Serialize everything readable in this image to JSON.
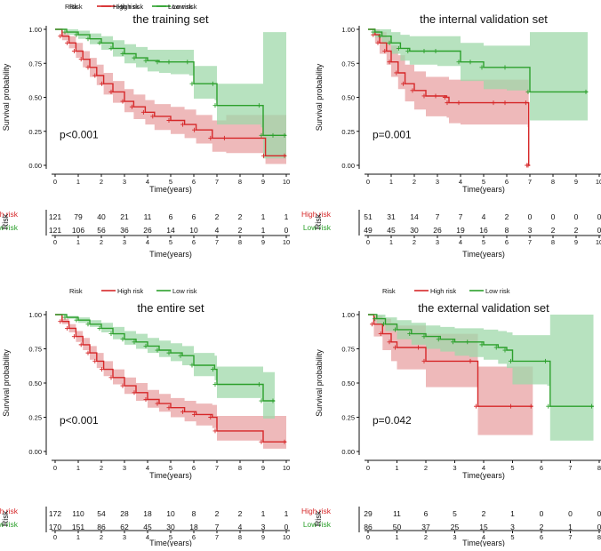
{
  "colors": {
    "high": "#d62728",
    "low": "#2ca02c",
    "high_fill": "#e8a2a3",
    "low_fill": "#9fd8aa",
    "axis": "#111111"
  },
  "legend": {
    "title": "Risk",
    "high": "High risk",
    "low": "Low risk"
  },
  "chart_data": [
    {
      "type": "line",
      "title": "the training set",
      "xlabel": "Time(years)",
      "ylabel": "Survival probability",
      "xlim": [
        0,
        10
      ],
      "ylim": [
        0,
        1
      ],
      "xticks": [
        "0",
        "1",
        "2",
        "3",
        "4",
        "5",
        "6",
        "7",
        "8",
        "9",
        "10"
      ],
      "yticks": [
        "0.00",
        "0.25",
        "0.50",
        "0.75",
        "1.00"
      ],
      "pvalue": "p<0.001",
      "series": [
        {
          "name": "High risk",
          "x": [
            0,
            0.3,
            0.6,
            0.9,
            1.2,
            1.5,
            1.8,
            2.1,
            2.5,
            3.0,
            3.4,
            3.9,
            4.3,
            5.0,
            5.6,
            6.1,
            6.8,
            7.4,
            9.1,
            10.0
          ],
          "y": [
            1.0,
            0.95,
            0.9,
            0.84,
            0.78,
            0.72,
            0.66,
            0.6,
            0.54,
            0.47,
            0.43,
            0.39,
            0.36,
            0.33,
            0.3,
            0.26,
            0.2,
            0.2,
            0.07,
            0.07
          ],
          "lo": [
            1.0,
            0.92,
            0.86,
            0.79,
            0.72,
            0.65,
            0.59,
            0.52,
            0.46,
            0.39,
            0.34,
            0.3,
            0.26,
            0.23,
            0.2,
            0.16,
            0.1,
            0.09,
            0.01,
            0.01
          ],
          "hi": [
            1.0,
            0.98,
            0.95,
            0.9,
            0.84,
            0.79,
            0.74,
            0.68,
            0.62,
            0.56,
            0.52,
            0.48,
            0.45,
            0.43,
            0.41,
            0.37,
            0.33,
            0.37,
            0.37,
            0.37
          ]
        },
        {
          "name": "Low risk",
          "x": [
            0,
            0.5,
            1.0,
            1.5,
            2.0,
            2.5,
            3.0,
            3.5,
            4.0,
            4.5,
            5.0,
            5.8,
            6.0,
            6.9,
            7.0,
            8.9,
            9.0,
            9.5,
            10.0
          ],
          "y": [
            1.0,
            0.98,
            0.96,
            0.93,
            0.9,
            0.86,
            0.82,
            0.79,
            0.77,
            0.76,
            0.76,
            0.76,
            0.6,
            0.6,
            0.44,
            0.44,
            0.22,
            0.22,
            0.22
          ],
          "lo": [
            1.0,
            0.96,
            0.93,
            0.89,
            0.85,
            0.8,
            0.75,
            0.72,
            0.69,
            0.68,
            0.67,
            0.66,
            0.49,
            0.48,
            0.3,
            0.28,
            0.05,
            0.05,
            0.05
          ],
          "hi": [
            1.0,
            1.0,
            0.99,
            0.97,
            0.95,
            0.92,
            0.89,
            0.87,
            0.85,
            0.85,
            0.85,
            0.85,
            0.73,
            0.73,
            0.6,
            0.6,
            0.98,
            0.98,
            0.98
          ]
        }
      ],
      "risk_table": {
        "high_label": "High risk",
        "low_label": "Low risk",
        "side_label": "Risk",
        "high": [
          "121",
          "79",
          "40",
          "21",
          "11",
          "6",
          "6",
          "2",
          "2",
          "1",
          "1"
        ],
        "low": [
          "121",
          "106",
          "56",
          "36",
          "26",
          "14",
          "10",
          "4",
          "2",
          "1",
          "0"
        ],
        "xticks": [
          "0",
          "1",
          "2",
          "3",
          "4",
          "5",
          "6",
          "7",
          "8",
          "9",
          "10"
        ],
        "xlabel": "Time(years)"
      }
    },
    {
      "type": "line",
      "title": "the internal validation set",
      "xlabel": "Time(years)",
      "ylabel": "Survival probability",
      "xlim": [
        0,
        10
      ],
      "ylim": [
        0,
        1
      ],
      "xticks": [
        "0",
        "1",
        "2",
        "3",
        "4",
        "5",
        "6",
        "7",
        "8",
        "9",
        "10"
      ],
      "yticks": [
        "0.00",
        "0.25",
        "0.50",
        "0.75",
        "1.00"
      ],
      "pvalue": "p=0.001",
      "series": [
        {
          "name": "High risk",
          "x": [
            0,
            0.3,
            0.5,
            0.8,
            1.0,
            1.3,
            1.6,
            2.0,
            2.5,
            3.0,
            3.4,
            3.5,
            4.0,
            5.5,
            6.0,
            6.9,
            6.95,
            7.0
          ],
          "y": [
            1.0,
            0.96,
            0.9,
            0.84,
            0.76,
            0.68,
            0.6,
            0.55,
            0.51,
            0.51,
            0.5,
            0.46,
            0.46,
            0.46,
            0.46,
            0.46,
            0.0,
            0.0
          ],
          "lo": [
            1.0,
            0.9,
            0.82,
            0.74,
            0.65,
            0.56,
            0.47,
            0.41,
            0.36,
            0.36,
            0.35,
            0.31,
            0.3,
            0.3,
            0.3,
            0.28,
            0.0,
            0.0
          ],
          "hi": [
            1.0,
            1.0,
            0.98,
            0.94,
            0.88,
            0.81,
            0.74,
            0.69,
            0.65,
            0.65,
            0.65,
            0.63,
            0.63,
            0.63,
            0.63,
            0.63,
            0.0,
            0.0
          ]
        },
        {
          "name": "Low risk",
          "x": [
            0,
            0.3,
            0.6,
            1.0,
            1.4,
            1.8,
            2.5,
            3.0,
            4.0,
            4.5,
            5.0,
            6.0,
            7.0,
            9.5
          ],
          "y": [
            1.0,
            0.98,
            0.95,
            0.9,
            0.86,
            0.84,
            0.84,
            0.84,
            0.76,
            0.76,
            0.72,
            0.72,
            0.54,
            0.54
          ],
          "lo": [
            1.0,
            0.94,
            0.89,
            0.82,
            0.77,
            0.74,
            0.74,
            0.73,
            0.62,
            0.62,
            0.56,
            0.55,
            0.33,
            0.33
          ],
          "hi": [
            1.0,
            1.0,
            1.0,
            0.98,
            0.96,
            0.95,
            0.95,
            0.95,
            0.9,
            0.9,
            0.88,
            0.88,
            0.98,
            0.98
          ]
        }
      ],
      "risk_table": {
        "high_label": "High risk",
        "low_label": "Low risk",
        "side_label": "Risk",
        "high": [
          "51",
          "31",
          "14",
          "7",
          "7",
          "4",
          "2",
          "0",
          "0",
          "0",
          "0"
        ],
        "low": [
          "49",
          "45",
          "30",
          "26",
          "19",
          "16",
          "8",
          "3",
          "2",
          "2",
          "0"
        ],
        "xticks": [
          "0",
          "1",
          "2",
          "3",
          "4",
          "5",
          "6",
          "7",
          "8",
          "9",
          "10"
        ],
        "xlabel": "Time(years)"
      }
    },
    {
      "type": "line",
      "title": "the entire set",
      "xlabel": "Time(years)",
      "ylabel": "Survival probability",
      "xlim": [
        0,
        10
      ],
      "ylim": [
        0,
        1
      ],
      "xticks": [
        "0",
        "1",
        "2",
        "3",
        "4",
        "5",
        "6",
        "7",
        "8",
        "9",
        "10"
      ],
      "yticks": [
        "0.00",
        "0.25",
        "0.50",
        "0.75",
        "1.00"
      ],
      "pvalue": "p<0.001",
      "series": [
        {
          "name": "High risk",
          "x": [
            0,
            0.3,
            0.6,
            0.9,
            1.2,
            1.5,
            1.8,
            2.1,
            2.5,
            3.0,
            3.5,
            4.0,
            4.5,
            5.0,
            5.6,
            6.1,
            6.8,
            7.0,
            9.0,
            10.0
          ],
          "y": [
            1.0,
            0.95,
            0.9,
            0.84,
            0.78,
            0.72,
            0.66,
            0.6,
            0.54,
            0.48,
            0.43,
            0.38,
            0.35,
            0.32,
            0.29,
            0.27,
            0.25,
            0.15,
            0.07,
            0.07
          ],
          "lo": [
            1.0,
            0.93,
            0.87,
            0.8,
            0.74,
            0.67,
            0.61,
            0.55,
            0.49,
            0.42,
            0.37,
            0.32,
            0.29,
            0.25,
            0.22,
            0.19,
            0.17,
            0.08,
            0.02,
            0.02
          ],
          "hi": [
            1.0,
            0.97,
            0.93,
            0.88,
            0.83,
            0.77,
            0.72,
            0.66,
            0.6,
            0.54,
            0.5,
            0.45,
            0.42,
            0.39,
            0.37,
            0.35,
            0.34,
            0.26,
            0.26,
            0.26
          ]
        },
        {
          "name": "Low risk",
          "x": [
            0,
            0.5,
            1.0,
            1.5,
            2.0,
            2.5,
            3.0,
            3.5,
            4.0,
            4.5,
            5.0,
            5.5,
            6.0,
            6.9,
            7.0,
            8.9,
            9.0,
            9.5
          ],
          "y": [
            1.0,
            0.98,
            0.96,
            0.93,
            0.9,
            0.86,
            0.82,
            0.8,
            0.77,
            0.74,
            0.72,
            0.7,
            0.63,
            0.6,
            0.49,
            0.49,
            0.37,
            0.37
          ],
          "lo": [
            1.0,
            0.97,
            0.94,
            0.91,
            0.87,
            0.82,
            0.78,
            0.75,
            0.72,
            0.69,
            0.66,
            0.63,
            0.55,
            0.52,
            0.39,
            0.38,
            0.24,
            0.24
          ],
          "hi": [
            1.0,
            0.99,
            0.98,
            0.96,
            0.94,
            0.91,
            0.88,
            0.86,
            0.83,
            0.81,
            0.79,
            0.77,
            0.72,
            0.7,
            0.62,
            0.62,
            0.58,
            0.58
          ]
        }
      ],
      "risk_table": {
        "high_label": "High risk",
        "low_label": "Low risk",
        "side_label": "Risk",
        "high": [
          "172",
          "110",
          "54",
          "28",
          "18",
          "10",
          "8",
          "2",
          "2",
          "1",
          "1"
        ],
        "low": [
          "170",
          "151",
          "86",
          "62",
          "45",
          "30",
          "18",
          "7",
          "4",
          "3",
          "0"
        ],
        "xticks": [
          "0",
          "1",
          "2",
          "3",
          "4",
          "5",
          "6",
          "7",
          "8",
          "9",
          "10"
        ],
        "xlabel": "Time(years)"
      }
    },
    {
      "type": "line",
      "title": "the external validation set",
      "xlabel": "Time(years)",
      "ylabel": "Survival probability",
      "xlim": [
        0,
        8
      ],
      "ylim": [
        0,
        1
      ],
      "xticks": [
        "0",
        "1",
        "2",
        "3",
        "4",
        "5",
        "6",
        "7",
        "8"
      ],
      "yticks": [
        "0.00",
        "0.25",
        "0.50",
        "0.75",
        "1.00"
      ],
      "pvalue": "p=0.042",
      "series": [
        {
          "name": "High risk",
          "x": [
            0,
            0.2,
            0.5,
            0.8,
            1.0,
            1.8,
            2.0,
            3.6,
            3.8,
            5.0,
            5.7
          ],
          "y": [
            1.0,
            0.93,
            0.86,
            0.8,
            0.76,
            0.76,
            0.66,
            0.66,
            0.33,
            0.33,
            0.33
          ],
          "lo": [
            1.0,
            0.84,
            0.74,
            0.66,
            0.6,
            0.6,
            0.47,
            0.47,
            0.12,
            0.12,
            0.12
          ],
          "hi": [
            1.0,
            0.99,
            0.97,
            0.94,
            0.92,
            0.92,
            0.86,
            0.86,
            0.62,
            0.62,
            0.62
          ]
        },
        {
          "name": "Low risk",
          "x": [
            0,
            0.3,
            0.6,
            1.0,
            1.5,
            2.0,
            2.5,
            3.0,
            3.5,
            4.0,
            4.5,
            4.8,
            5.0,
            6.2,
            6.3,
            7.8
          ],
          "y": [
            1.0,
            0.97,
            0.93,
            0.89,
            0.86,
            0.84,
            0.82,
            0.8,
            0.8,
            0.78,
            0.76,
            0.74,
            0.66,
            0.66,
            0.33,
            0.33
          ],
          "lo": [
            1.0,
            0.93,
            0.88,
            0.82,
            0.78,
            0.75,
            0.73,
            0.7,
            0.69,
            0.67,
            0.64,
            0.61,
            0.49,
            0.48,
            0.08,
            0.08
          ],
          "hi": [
            1.0,
            1.0,
            0.98,
            0.96,
            0.94,
            0.92,
            0.91,
            0.9,
            0.9,
            0.89,
            0.88,
            0.87,
            0.85,
            0.85,
            1.0,
            1.0
          ]
        }
      ],
      "risk_table": {
        "high_label": "High risk",
        "low_label": "Low risk",
        "side_label": "Risk",
        "high": [
          "29",
          "11",
          "6",
          "5",
          "2",
          "1",
          "0",
          "0",
          "0"
        ],
        "low": [
          "86",
          "50",
          "37",
          "25",
          "15",
          "3",
          "2",
          "1",
          "0"
        ],
        "xticks": [
          "0",
          "1",
          "2",
          "3",
          "4",
          "5",
          "6",
          "7",
          "8"
        ],
        "xlabel": "Time(years)"
      }
    }
  ]
}
